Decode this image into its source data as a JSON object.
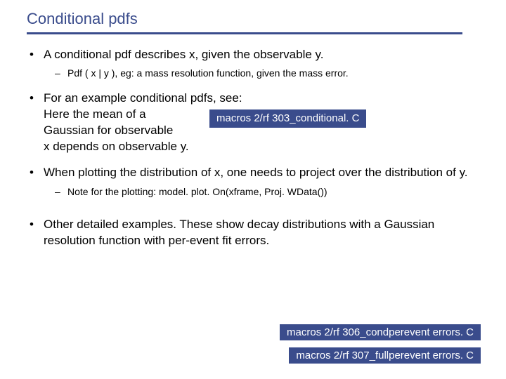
{
  "title": "Conditional pdfs",
  "colors": {
    "heading": "#3a4c8c",
    "macro_bg": "#3a4c8c",
    "macro_fg": "#ffffff",
    "text": "#000000",
    "background": "#ffffff"
  },
  "typography": {
    "title_fontsize": 22,
    "body_fontsize": 17,
    "sub_fontsize": 14,
    "macro_fontsize": 15,
    "font_family": "Verdana"
  },
  "bullets": [
    {
      "text": "A conditional pdf describes x, given the observable y.",
      "sub": [
        "Pdf ( x | y ), eg: a mass resolution function, given the mass error."
      ]
    },
    {
      "text_lines": [
        "For an example conditional pdfs, see:",
        "Here the mean of a",
        "Gaussian for observable",
        "x depends on observable y."
      ],
      "macro": "macros 2/rf 303_conditional. C"
    },
    {
      "text": "When plotting the distribution of x, one needs to project over the distribution of y.",
      "sub": [
        "Note for the plotting: model. plot. On(xframe, Proj. WData())"
      ]
    },
    {
      "text": "Other detailed examples. These show decay distributions with a Gaussian resolution function with per-event fit errors.",
      "macros": [
        "macros 2/rf 306_condperevent errors. C",
        "macros 2/rf 307_fullperevent errors. C"
      ]
    }
  ]
}
